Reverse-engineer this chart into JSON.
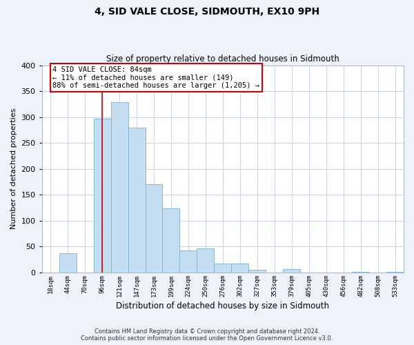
{
  "title": "4, SID VALE CLOSE, SIDMOUTH, EX10 9PH",
  "subtitle": "Size of property relative to detached houses in Sidmouth",
  "xlabel": "Distribution of detached houses by size in Sidmouth",
  "ylabel": "Number of detached properties",
  "bar_labels": [
    "18sqm",
    "44sqm",
    "70sqm",
    "96sqm",
    "121sqm",
    "147sqm",
    "173sqm",
    "199sqm",
    "224sqm",
    "250sqm",
    "276sqm",
    "302sqm",
    "327sqm",
    "353sqm",
    "379sqm",
    "405sqm",
    "430sqm",
    "456sqm",
    "482sqm",
    "508sqm",
    "533sqm"
  ],
  "bar_values": [
    0,
    37,
    0,
    297,
    329,
    280,
    170,
    124,
    42,
    46,
    17,
    17,
    5,
    0,
    7,
    0,
    0,
    0,
    2,
    0,
    2
  ],
  "bar_color": "#c5ddf0",
  "bar_edge_color": "#7ab0d4",
  "vline_color": "#cc0000",
  "ylim": [
    0,
    400
  ],
  "yticks": [
    0,
    50,
    100,
    150,
    200,
    250,
    300,
    350,
    400
  ],
  "annotation_title": "4 SID VALE CLOSE: 84sqm",
  "annotation_line1": "← 11% of detached houses are smaller (149)",
  "annotation_line2": "88% of semi-detached houses are larger (1,205) →",
  "footnote1": "Contains HM Land Registry data © Crown copyright and database right 2024.",
  "footnote2": "Contains public sector information licensed under the Open Government Licence v3.0.",
  "bg_color": "#eef2fb",
  "plot_bg_color": "#ffffff",
  "grid_color": "#c8d4e8"
}
